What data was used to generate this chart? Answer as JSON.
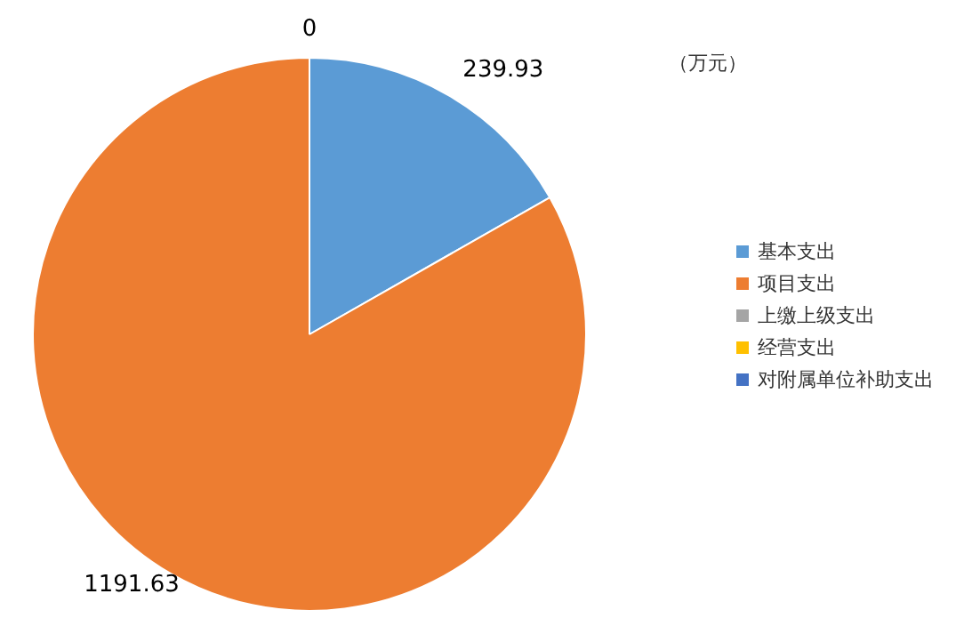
{
  "chart_data": {
    "type": "pie",
    "categories": [
      "基本支出",
      "项目支出",
      "上缴上级支出",
      "经营支出",
      "对附属单位补助支出"
    ],
    "values": [
      239.93,
      1191.63,
      0,
      0,
      0
    ],
    "colors": [
      "#5b9bd5",
      "#ed7d31",
      "#a5a5a5",
      "#ffc000",
      "#4472c4"
    ],
    "value_labels": [
      "239.93",
      "1191.63",
      "0",
      null,
      null
    ],
    "legend": "right",
    "annotations": [
      "（万元）"
    ]
  }
}
